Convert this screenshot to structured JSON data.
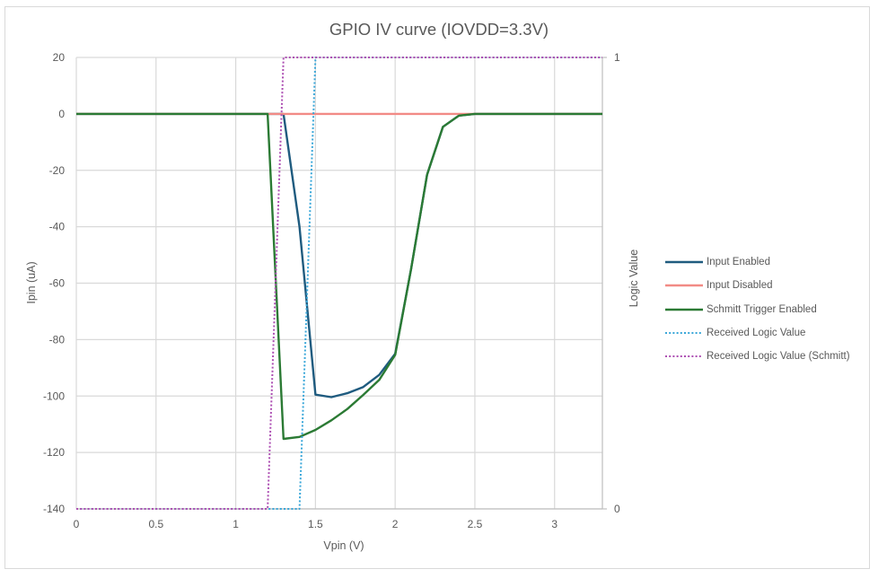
{
  "chart_data": {
    "type": "line",
    "title": "GPIO IV curve (IOVDD=3.3V)",
    "xlabel": "Vpin (V)",
    "ylabel": "Ipin (uA)",
    "y2label": "Logic Value",
    "xlim": [
      0,
      3.3
    ],
    "ylim": [
      -140,
      20
    ],
    "y2lim": [
      0,
      1
    ],
    "xticks": [
      "0",
      "0.5",
      "1",
      "1.5",
      "2",
      "2.5",
      "3"
    ],
    "xtick_values": [
      0,
      0.5,
      1,
      1.5,
      2,
      2.5,
      3
    ],
    "yticks": [
      "20",
      "0",
      "-20",
      "-40",
      "-60",
      "-80",
      "-100",
      "-120",
      "-140"
    ],
    "ytick_values": [
      20,
      0,
      -20,
      -40,
      -60,
      -80,
      -100,
      -120,
      -140
    ],
    "y2ticks": [
      "1",
      "0"
    ],
    "y2tick_values": [
      1,
      0
    ],
    "grid": true,
    "legend_position": "right",
    "x": [
      0,
      0.1,
      0.2,
      0.3,
      0.4,
      0.5,
      0.6,
      0.7,
      0.8,
      0.9,
      1.0,
      1.1,
      1.2,
      1.3,
      1.4,
      1.5,
      1.6,
      1.7,
      1.8,
      1.9,
      2.0,
      2.1,
      2.2,
      2.3,
      2.4,
      2.5,
      2.6,
      2.7,
      2.8,
      2.9,
      3.0,
      3.1,
      3.2,
      3.3
    ],
    "series": [
      {
        "name": "Input Enabled",
        "axis": "primary",
        "color": "#1f5b7f",
        "style": "solid",
        "values": [
          0,
          0,
          0,
          0,
          0,
          0,
          0,
          0,
          0,
          0,
          0,
          0,
          0,
          0,
          -40,
          -99.5,
          -100.4,
          -99,
          -96.8,
          -92.5,
          -85,
          -55,
          -21.6,
          -4.6,
          -0.6,
          0,
          0,
          0,
          0,
          0,
          0,
          0,
          0,
          0
        ]
      },
      {
        "name": "Input Disabled",
        "axis": "primary",
        "color": "#f28b86",
        "style": "solid",
        "values": [
          0,
          0,
          0,
          0,
          0,
          0,
          0,
          0,
          0,
          0,
          0,
          0,
          0,
          0,
          0,
          0,
          0,
          0,
          0,
          0,
          0,
          0,
          0,
          0,
          0,
          0,
          0,
          0,
          0,
          0,
          0,
          0,
          0,
          0
        ]
      },
      {
        "name": "Schmitt Trigger Enabled",
        "axis": "primary",
        "color": "#2b7a34",
        "style": "solid",
        "values": [
          0,
          0,
          0,
          0,
          0,
          0,
          0,
          0,
          0,
          0,
          0,
          0,
          0,
          -115.2,
          -114.5,
          -112,
          -108.6,
          -104.6,
          -99.6,
          -94.3,
          -85.4,
          -55,
          -21.6,
          -4.6,
          -0.6,
          0,
          0,
          0,
          0,
          0,
          0,
          0,
          0,
          0
        ]
      },
      {
        "name": "Received Logic Value",
        "axis": "secondary",
        "color": "#3aa7d9",
        "style": "dotted",
        "values": [
          0,
          0,
          0,
          0,
          0,
          0,
          0,
          0,
          0,
          0,
          0,
          0,
          0,
          0,
          0,
          1,
          1,
          1,
          1,
          1,
          1,
          1,
          1,
          1,
          1,
          1,
          1,
          1,
          1,
          1,
          1,
          1,
          1,
          1
        ]
      },
      {
        "name": "Received Logic Value (Schmitt)",
        "axis": "secondary",
        "color": "#ad4fb3",
        "style": "dotted",
        "values": [
          0,
          0,
          0,
          0,
          0,
          0,
          0,
          0,
          0,
          0,
          0,
          0,
          0,
          1,
          1,
          1,
          1,
          1,
          1,
          1,
          1,
          1,
          1,
          1,
          1,
          1,
          1,
          1,
          1,
          1,
          1,
          1,
          1,
          1
        ]
      }
    ]
  }
}
